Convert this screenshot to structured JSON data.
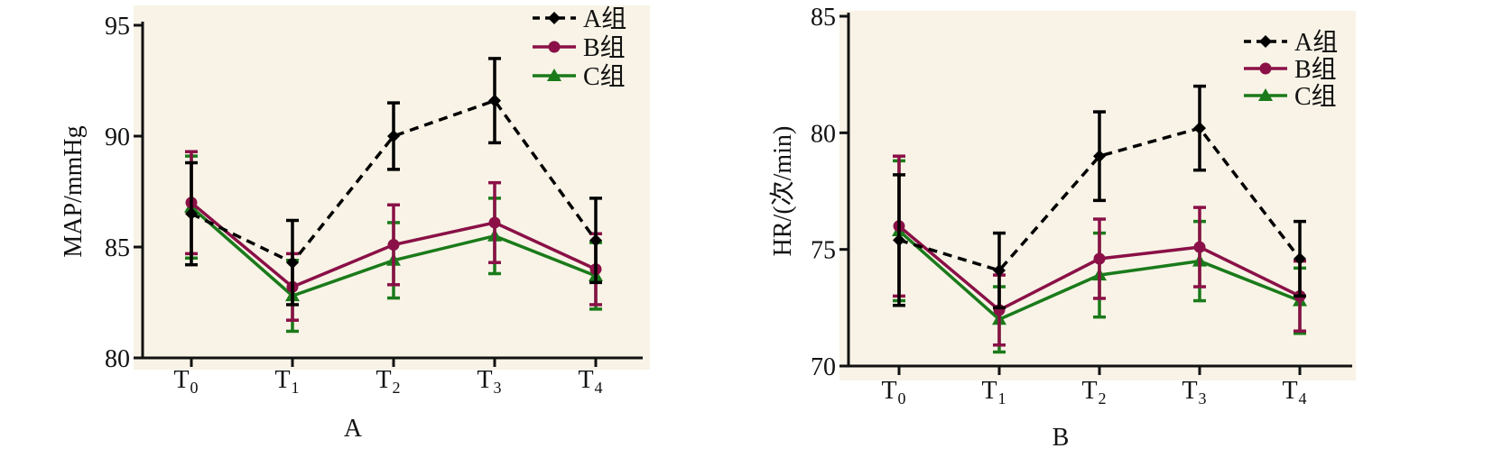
{
  "colors": {
    "A": "#000000",
    "B": "#8a1047",
    "C": "#1a7a1a",
    "plot_bg": "#f8f3e6"
  },
  "chart_data": [
    {
      "type": "line",
      "panel_label": "A",
      "ylabel": "MAP/mmHg",
      "categories": [
        "T0",
        "T1",
        "T2",
        "T3",
        "T4"
      ],
      "category_labels": [
        {
          "main": "T",
          "sub": "0"
        },
        {
          "main": "T",
          "sub": "1"
        },
        {
          "main": "T",
          "sub": "2"
        },
        {
          "main": "T",
          "sub": "3"
        },
        {
          "main": "T",
          "sub": "4"
        }
      ],
      "ylim": [
        80,
        95
      ],
      "yticks": [
        80,
        85,
        90,
        95
      ],
      "legend_position": "top-right",
      "series": [
        {
          "name": "A组",
          "marker": "diamond",
          "dashed": true,
          "values": [
            86.5,
            84.3,
            90.0,
            91.6,
            85.3
          ],
          "errors": [
            2.3,
            1.9,
            1.5,
            1.9,
            1.9
          ]
        },
        {
          "name": "B组",
          "marker": "circle",
          "dashed": false,
          "values": [
            87.0,
            83.2,
            85.1,
            86.1,
            84.0
          ],
          "errors": [
            2.3,
            1.5,
            1.8,
            1.8,
            1.6
          ]
        },
        {
          "name": "C组",
          "marker": "triangle",
          "dashed": false,
          "values": [
            86.8,
            82.8,
            84.4,
            85.5,
            83.7
          ],
          "errors": [
            2.3,
            1.6,
            1.7,
            1.7,
            1.5
          ]
        }
      ]
    },
    {
      "type": "line",
      "panel_label": "B",
      "ylabel": "HR/(次/min)",
      "categories": [
        "T0",
        "T1",
        "T2",
        "T3",
        "T4"
      ],
      "category_labels": [
        {
          "main": "T",
          "sub": "0"
        },
        {
          "main": "T",
          "sub": "1"
        },
        {
          "main": "T",
          "sub": "2"
        },
        {
          "main": "T",
          "sub": "3"
        },
        {
          "main": "T",
          "sub": "4"
        }
      ],
      "ylim": [
        70,
        85
      ],
      "yticks": [
        70,
        75,
        80,
        85
      ],
      "legend_position": "top-right",
      "series": [
        {
          "name": "A组",
          "marker": "diamond",
          "dashed": true,
          "values": [
            75.4,
            74.1,
            79.0,
            80.2,
            74.6
          ],
          "errors": [
            2.8,
            1.6,
            1.9,
            1.8,
            1.6
          ]
        },
        {
          "name": "B组",
          "marker": "circle",
          "dashed": false,
          "values": [
            76.0,
            72.4,
            74.6,
            75.1,
            73.0
          ],
          "errors": [
            3.0,
            1.5,
            1.7,
            1.7,
            1.5
          ]
        },
        {
          "name": "C组",
          "marker": "triangle",
          "dashed": false,
          "values": [
            75.8,
            72.0,
            73.9,
            74.5,
            72.8
          ],
          "errors": [
            3.0,
            1.4,
            1.8,
            1.7,
            1.4
          ]
        }
      ]
    }
  ]
}
